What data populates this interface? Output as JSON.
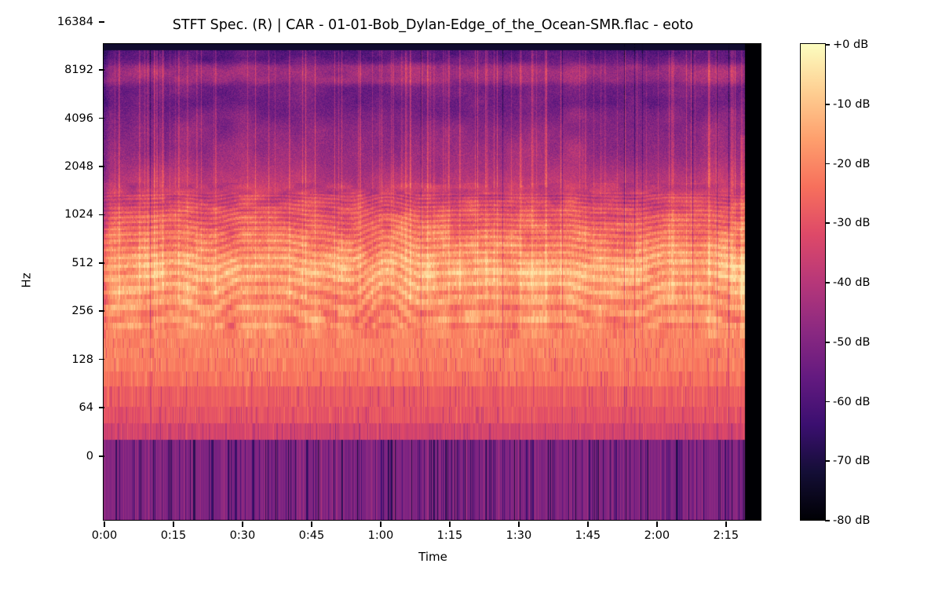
{
  "chart_data": {
    "type": "heatmap",
    "subtype": "stft-spectrogram",
    "title": "STFT Spec. (R) | CAR - 01-01-Bob_Dylan-Edge_of_the_Ocean-SMR.flac - eoto",
    "xlabel": "Time",
    "ylabel": "Hz",
    "x_ticks": [
      "0:00",
      "0:15",
      "0:30",
      "0:45",
      "1:00",
      "1:15",
      "1:30",
      "1:45",
      "2:00",
      "2:15"
    ],
    "y_ticks": [
      "16384",
      "8192",
      "4096",
      "2048",
      "1024",
      "512",
      "256",
      "128",
      "64",
      "0"
    ],
    "colorbar_ticks": [
      "+0 dB",
      "-10 dB",
      "-20 dB",
      "-30 dB",
      "-40 dB",
      "-50 dB",
      "-60 dB",
      "-70 dB",
      "-80 dB"
    ],
    "colormap": "magma",
    "db_min": -80,
    "db_max": 0,
    "x_max_s": 142.7,
    "duration_s": 139.3,
    "legend_position": "right-colorbar",
    "grid": false,
    "spectral_profile_db": [
      [
        22050,
        -74
      ],
      [
        16384,
        -63
      ],
      [
        12000,
        -59
      ],
      [
        9600,
        -56
      ],
      [
        9000,
        -52
      ],
      [
        8600,
        -46
      ],
      [
        8000,
        -44
      ],
      [
        7000,
        -45
      ],
      [
        6400,
        -52
      ],
      [
        5000,
        -53
      ],
      [
        4096,
        -50
      ],
      [
        2900,
        -46
      ],
      [
        2048,
        -43
      ],
      [
        1450,
        -37
      ],
      [
        1024,
        -29
      ],
      [
        800,
        -24
      ],
      [
        600,
        -19
      ],
      [
        512,
        -15
      ],
      [
        420,
        -14
      ],
      [
        330,
        -17
      ],
      [
        250,
        -19
      ],
      [
        172,
        -20
      ]
    ],
    "low_bin_levels_db": [
      -50,
      -34,
      -30,
      -28,
      -24,
      -22,
      -21,
      -21
    ],
    "bin_width_hz": 21.5
  },
  "colors": {
    "background": "#ffffff",
    "text": "#000000",
    "frame": "#000000",
    "magma_stops": [
      "#000004",
      "#140e36",
      "#3b0f70",
      "#641a80",
      "#8c2981",
      "#b73779",
      "#de4968",
      "#f7705c",
      "#fe9f6d",
      "#fecf92",
      "#fcfdbf"
    ]
  }
}
